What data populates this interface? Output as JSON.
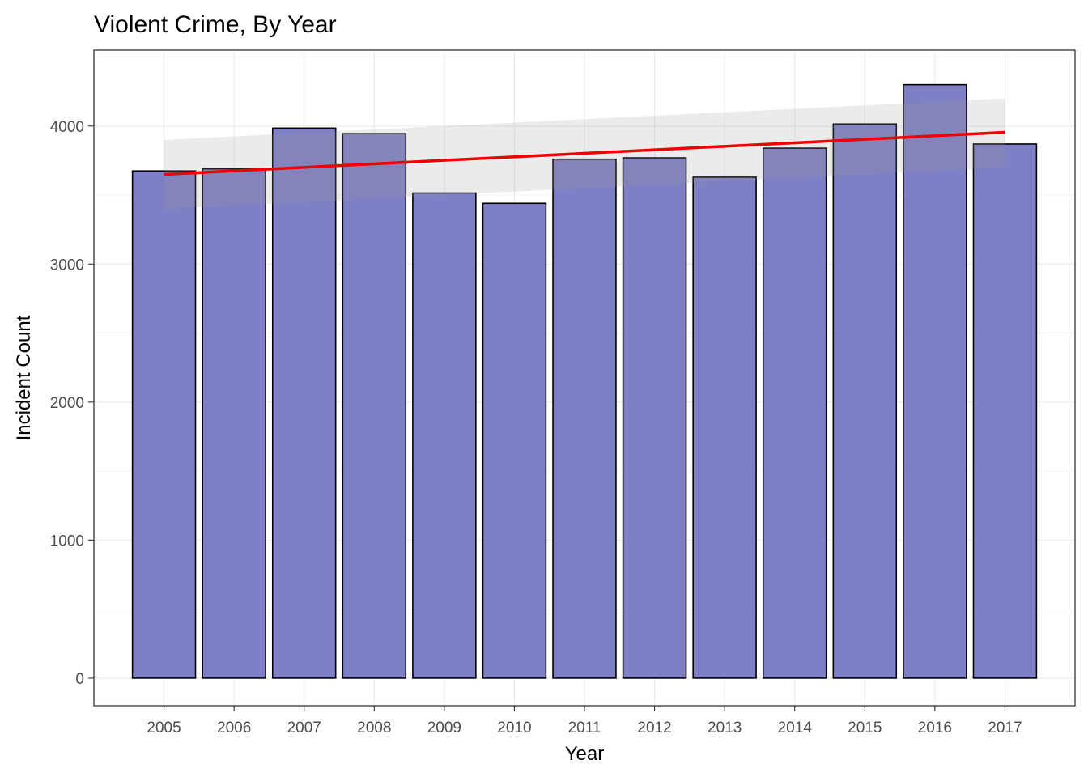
{
  "chart_data": {
    "type": "bar",
    "title": "Violent Crime, By Year",
    "xlabel": "Year",
    "ylabel": "Incident Count",
    "categories": [
      "2005",
      "2006",
      "2007",
      "2008",
      "2009",
      "2010",
      "2011",
      "2012",
      "2013",
      "2014",
      "2015",
      "2016",
      "2017"
    ],
    "values": [
      3675,
      3690,
      3985,
      3945,
      3515,
      3440,
      3760,
      3770,
      3630,
      3840,
      4015,
      4300,
      3870
    ],
    "ylim": [
      -200,
      4550
    ],
    "yticks": [
      0,
      1000,
      2000,
      3000,
      4000
    ],
    "grid": true,
    "trend_line": {
      "method": "linear fit",
      "start": 3650,
      "end": 3955,
      "band_start": [
        3400,
        3900
      ],
      "band_end": [
        3700,
        4200
      ]
    },
    "colors": {
      "bar_fill": "#7f7fc5",
      "bar_stroke": "#000000",
      "trend_line": "#ee0000",
      "band": "#999999"
    }
  }
}
